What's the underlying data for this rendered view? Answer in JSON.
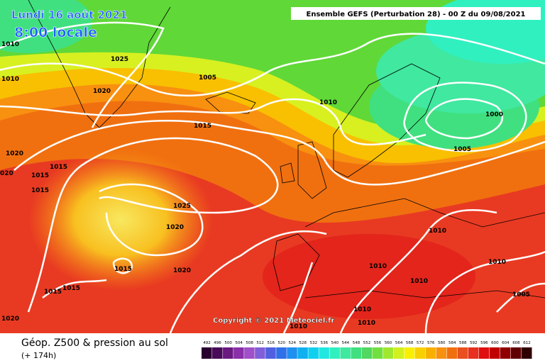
{
  "header": {
    "date": "Lundi 16 août 2021",
    "time": "8:00 locale",
    "run": "Ensemble GEFS  (Perturbation 28)  -  00 Z du 09/08/2021"
  },
  "copyright": "Copyright © 2021 Meteociel.fr",
  "isobar_labels": [
    "1010",
    "1010",
    "1025",
    "1020",
    "1005",
    "1010",
    "1015",
    "1000",
    "1005",
    "1020",
    "1015",
    "1015",
    "020",
    "1015",
    "1025",
    "1020",
    "1010",
    "1015",
    "1020",
    "1010",
    "1010",
    "1010",
    "1015",
    "1015",
    "1005",
    "1010",
    "1020",
    "1010",
    "1010"
  ],
  "legend": {
    "title": "Géop. Z500 & pression au sol",
    "lead": "(+ 174h)",
    "scale": [
      {
        "value": 492,
        "color": "#2a0030"
      },
      {
        "value": 496,
        "color": "#4a0a5a"
      },
      {
        "value": 500,
        "color": "#6a1a80"
      },
      {
        "value": 504,
        "color": "#8a30a8"
      },
      {
        "value": 508,
        "color": "#a050c8"
      },
      {
        "value": 512,
        "color": "#8060d8"
      },
      {
        "value": 516,
        "color": "#5060e0"
      },
      {
        "value": 520,
        "color": "#3070e8"
      },
      {
        "value": 524,
        "color": "#2090f0"
      },
      {
        "value": 528,
        "color": "#10b0f0"
      },
      {
        "value": 532,
        "color": "#10d0f0"
      },
      {
        "value": 536,
        "color": "#20e8e0"
      },
      {
        "value": 540,
        "color": "#30f0c0"
      },
      {
        "value": 544,
        "color": "#40e8a0"
      },
      {
        "value": 548,
        "color": "#40e080"
      },
      {
        "value": 552,
        "color": "#50d860"
      },
      {
        "value": 556,
        "color": "#70e040"
      },
      {
        "value": 560,
        "color": "#a0e830"
      },
      {
        "value": 564,
        "color": "#d0f020"
      },
      {
        "value": 568,
        "color": "#f8f000"
      },
      {
        "value": 572,
        "color": "#f8d000"
      },
      {
        "value": 576,
        "color": "#f8b000"
      },
      {
        "value": 580,
        "color": "#f89010"
      },
      {
        "value": 584,
        "color": "#f07010"
      },
      {
        "value": 588,
        "color": "#e85020"
      },
      {
        "value": 592,
        "color": "#e83020"
      },
      {
        "value": 596,
        "color": "#e01010"
      },
      {
        "value": 600,
        "color": "#c00000"
      },
      {
        "value": 604,
        "color": "#900000"
      },
      {
        "value": 608,
        "color": "#600000"
      },
      {
        "value": 612,
        "color": "#300000"
      }
    ]
  }
}
